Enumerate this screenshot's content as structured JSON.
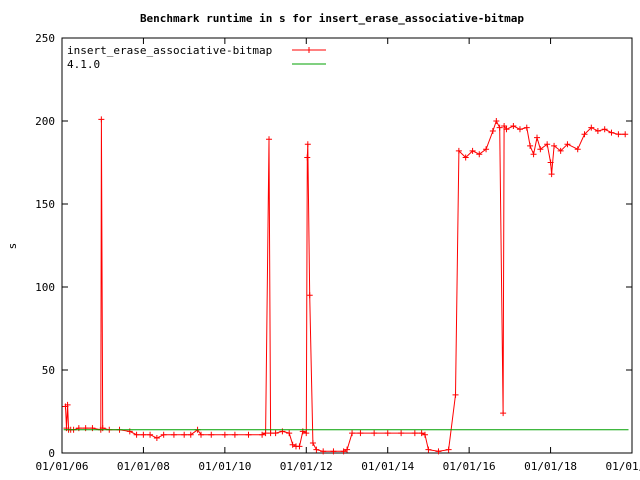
{
  "chart_data": {
    "type": "line",
    "title": "Benchmark runtime in s for insert_erase_associative-bitmap",
    "xlabel": "",
    "ylabel": "s",
    "ylim": [
      0,
      250
    ],
    "yticks": [
      0,
      50,
      100,
      150,
      200,
      250
    ],
    "xlim": [
      "2006-01-01",
      "2020-01-01"
    ],
    "xticks": [
      "01/01/06",
      "01/01/08",
      "01/01/10",
      "01/01/12",
      "01/01/14",
      "01/01/16",
      "01/01/18",
      "01/01/20"
    ],
    "grid": false,
    "legend_position": "top-left",
    "series": [
      {
        "name": "insert_erase_associative-bitmap",
        "color": "#ff0000",
        "marker": "plus",
        "points": [
          [
            "2006-02-01",
            28
          ],
          [
            "2006-02-10",
            15
          ],
          [
            "2006-02-20",
            29
          ],
          [
            "2006-03-01",
            14
          ],
          [
            "2006-03-20",
            14
          ],
          [
            "2006-04-15",
            14
          ],
          [
            "2006-06-01",
            15
          ],
          [
            "2006-08-01",
            15
          ],
          [
            "2006-10-01",
            15
          ],
          [
            "2006-12-15",
            14
          ],
          [
            "2006-12-20",
            201
          ],
          [
            "2007-01-01",
            15
          ],
          [
            "2007-03-01",
            14
          ],
          [
            "2007-06-01",
            14
          ],
          [
            "2007-09-01",
            13
          ],
          [
            "2007-11-01",
            11
          ],
          [
            "2008-01-01",
            11
          ],
          [
            "2008-03-01",
            11
          ],
          [
            "2008-05-01",
            9
          ],
          [
            "2008-07-01",
            11
          ],
          [
            "2008-10-01",
            11
          ],
          [
            "2009-01-01",
            11
          ],
          [
            "2009-03-01",
            11
          ],
          [
            "2009-05-01",
            14
          ],
          [
            "2009-06-01",
            11
          ],
          [
            "2009-09-01",
            11
          ],
          [
            "2010-01-01",
            11
          ],
          [
            "2010-04-01",
            11
          ],
          [
            "2010-08-01",
            11
          ],
          [
            "2010-12-01",
            11
          ],
          [
            "2011-01-01",
            12
          ],
          [
            "2011-02-01",
            189
          ],
          [
            "2011-02-15",
            12
          ],
          [
            "2011-04-01",
            12
          ],
          [
            "2011-06-01",
            13
          ],
          [
            "2011-08-01",
            12
          ],
          [
            "2011-09-01",
            5
          ],
          [
            "2011-10-01",
            4
          ],
          [
            "2011-11-01",
            4
          ],
          [
            "2011-12-01",
            13
          ],
          [
            "2012-01-01",
            12
          ],
          [
            "2012-01-10",
            178
          ],
          [
            "2012-01-15",
            186
          ],
          [
            "2012-02-01",
            95
          ],
          [
            "2012-03-01",
            6
          ],
          [
            "2012-04-01",
            2
          ],
          [
            "2012-06-01",
            1
          ],
          [
            "2012-09-01",
            1
          ],
          [
            "2012-12-01",
            1
          ],
          [
            "2013-01-01",
            2
          ],
          [
            "2013-02-15",
            12
          ],
          [
            "2013-05-01",
            12
          ],
          [
            "2013-09-01",
            12
          ],
          [
            "2014-01-01",
            12
          ],
          [
            "2014-05-01",
            12
          ],
          [
            "2014-09-01",
            12
          ],
          [
            "2014-11-01",
            12
          ],
          [
            "2014-12-01",
            11
          ],
          [
            "2015-01-01",
            2
          ],
          [
            "2015-04-01",
            1
          ],
          [
            "2015-07-01",
            2
          ],
          [
            "2015-09-01",
            35
          ],
          [
            "2015-10-01",
            182
          ],
          [
            "2015-12-01",
            178
          ],
          [
            "2016-02-01",
            182
          ],
          [
            "2016-04-01",
            180
          ],
          [
            "2016-06-01",
            183
          ],
          [
            "2016-08-01",
            194
          ],
          [
            "2016-09-01",
            200
          ],
          [
            "2016-10-01",
            196
          ],
          [
            "2016-11-01",
            24
          ],
          [
            "2016-11-10",
            197
          ],
          [
            "2016-12-01",
            195
          ],
          [
            "2017-02-01",
            197
          ],
          [
            "2017-04-01",
            195
          ],
          [
            "2017-06-01",
            196
          ],
          [
            "2017-07-01",
            185
          ],
          [
            "2017-08-01",
            180
          ],
          [
            "2017-09-01",
            190
          ],
          [
            "2017-10-01",
            183
          ],
          [
            "2017-12-01",
            186
          ],
          [
            "2018-01-01",
            175
          ],
          [
            "2018-01-10",
            168
          ],
          [
            "2018-02-01",
            185
          ],
          [
            "2018-04-01",
            182
          ],
          [
            "2018-06-01",
            186
          ],
          [
            "2018-09-01",
            183
          ],
          [
            "2018-11-01",
            192
          ],
          [
            "2019-01-01",
            196
          ],
          [
            "2019-03-01",
            194
          ],
          [
            "2019-05-01",
            195
          ],
          [
            "2019-07-01",
            193
          ],
          [
            "2019-09-01",
            192
          ],
          [
            "2019-11-01",
            192
          ]
        ]
      },
      {
        "name": "4.1.0",
        "color": "#00a000",
        "marker": "none",
        "points": [
          [
            "2006-01-15",
            14
          ],
          [
            "2019-12-01",
            14
          ]
        ]
      }
    ]
  }
}
